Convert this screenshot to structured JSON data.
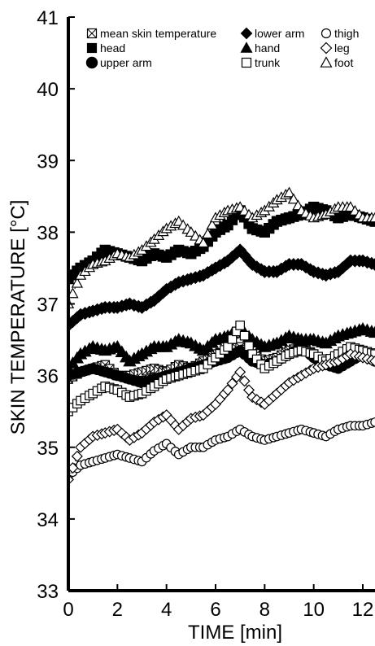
{
  "chart_data": {
    "type": "scatter",
    "title": "",
    "xlabel": "TIME [min]",
    "ylabel": "SKIN TEMPERATURE [°C]",
    "xlim": [
      0,
      12.8
    ],
    "ylim": [
      33,
      41
    ],
    "xticks": [
      0,
      2,
      4,
      6,
      8,
      10,
      12
    ],
    "yticks": [
      33,
      34,
      35,
      36,
      37,
      38,
      39,
      40,
      41
    ],
    "grid": false,
    "legend_placement": "top",
    "series": [
      {
        "name": "mean skin temperature",
        "marker": "square-cross",
        "filled": false,
        "dotted": false,
        "x": [
          0,
          0.5,
          1,
          1.5,
          2,
          2.5,
          3,
          3.5,
          4,
          4.5,
          5,
          5.5,
          6,
          6.5,
          7,
          7.5,
          8,
          8.5,
          9,
          9.5,
          10,
          10.5,
          11,
          11.5,
          12,
          12.5
        ],
        "values": [
          35.95,
          36.05,
          36.1,
          36.15,
          36.0,
          36.0,
          36.05,
          36.1,
          36.05,
          36.15,
          36.1,
          36.2,
          36.3,
          36.35,
          36.4,
          36.3,
          36.2,
          36.25,
          36.35,
          36.4,
          36.3,
          36.2,
          36.15,
          36.25,
          36.3,
          36.25
        ]
      },
      {
        "name": "head",
        "marker": "square",
        "filled": true,
        "dotted": false,
        "x": [
          0,
          0.5,
          1,
          1.5,
          2,
          2.5,
          3,
          3.5,
          4,
          4.5,
          5,
          5.5,
          6,
          6.5,
          7,
          7.5,
          8,
          8.5,
          9,
          9.5,
          10,
          10.5,
          11,
          11.5,
          12,
          12.5
        ],
        "values": [
          37.35,
          37.5,
          37.6,
          37.75,
          37.7,
          37.65,
          37.6,
          37.7,
          37.65,
          37.75,
          37.7,
          37.8,
          38.0,
          38.1,
          38.3,
          38.05,
          38.0,
          38.15,
          38.2,
          38.25,
          38.35,
          38.3,
          38.2,
          38.25,
          38.2,
          38.15
        ]
      },
      {
        "name": "upper arm",
        "marker": "circle",
        "filled": true,
        "dotted": false,
        "x": [
          0,
          0.5,
          1,
          1.5,
          2,
          2.5,
          3,
          3.5,
          4,
          4.5,
          5,
          5.5,
          6,
          6.5,
          7,
          7.5,
          8,
          8.5,
          9,
          9.5,
          10,
          10.5,
          11,
          11.5,
          12,
          12.5
        ],
        "values": [
          36.0,
          36.05,
          36.1,
          36.05,
          36.0,
          35.95,
          35.9,
          35.95,
          36.0,
          36.05,
          36.1,
          36.15,
          36.2,
          36.25,
          36.35,
          36.2,
          36.15,
          36.2,
          36.3,
          36.4,
          36.25,
          36.15,
          36.1,
          36.2,
          36.3,
          36.2
        ]
      },
      {
        "name": "lower arm",
        "marker": "diamond",
        "filled": true,
        "dotted": false,
        "x": [
          0,
          0.5,
          1,
          1.5,
          2,
          2.5,
          3,
          3.5,
          4,
          4.5,
          5,
          5.5,
          6,
          6.5,
          7,
          7.5,
          8,
          8.5,
          9,
          9.5,
          10,
          10.5,
          11,
          11.5,
          12,
          12.5
        ],
        "values": [
          36.7,
          36.85,
          36.9,
          36.95,
          36.95,
          37.0,
          36.95,
          37.05,
          37.2,
          37.3,
          37.35,
          37.4,
          37.5,
          37.6,
          37.75,
          37.55,
          37.45,
          37.45,
          37.55,
          37.55,
          37.45,
          37.4,
          37.45,
          37.6,
          37.6,
          37.55
        ]
      },
      {
        "name": "hand",
        "marker": "triangle",
        "filled": true,
        "dotted": false,
        "x": [
          0,
          0.5,
          1,
          1.5,
          2,
          2.5,
          3,
          3.5,
          4,
          4.5,
          5,
          5.5,
          6,
          6.5,
          7,
          7.5,
          8,
          8.5,
          9,
          9.5,
          10,
          10.5,
          11,
          11.5,
          12,
          12.5
        ],
        "values": [
          36.1,
          36.3,
          36.4,
          36.35,
          36.4,
          36.2,
          36.3,
          36.4,
          36.4,
          36.5,
          36.45,
          36.35,
          36.5,
          36.55,
          36.65,
          36.5,
          36.4,
          36.45,
          36.55,
          36.5,
          36.5,
          36.45,
          36.55,
          36.6,
          36.65,
          36.6
        ]
      },
      {
        "name": "trunk",
        "marker": "square",
        "filled": false,
        "dotted": false,
        "x": [
          0,
          0.5,
          1,
          1.5,
          2,
          2.5,
          3,
          3.5,
          4,
          4.5,
          5,
          5.5,
          6,
          6.5,
          7,
          7.5,
          8,
          8.5,
          9,
          9.5,
          10,
          10.5,
          11,
          11.5,
          12,
          12.5
        ],
        "values": [
          35.5,
          35.65,
          35.75,
          35.85,
          35.8,
          35.7,
          35.75,
          35.85,
          35.95,
          36.0,
          36.05,
          36.1,
          36.25,
          36.4,
          36.7,
          36.3,
          36.1,
          36.2,
          36.3,
          36.35,
          36.3,
          36.2,
          36.3,
          36.4,
          36.35,
          36.3
        ]
      },
      {
        "name": "thigh",
        "marker": "circle",
        "filled": false,
        "dotted": false,
        "x": [
          0,
          0.5,
          1,
          1.5,
          2,
          2.5,
          3,
          3.5,
          4,
          4.5,
          5,
          5.5,
          6,
          6.5,
          7,
          7.5,
          8,
          8.5,
          9,
          9.5,
          10,
          10.5,
          11,
          11.5,
          12,
          12.5
        ],
        "values": [
          34.6,
          34.75,
          34.8,
          34.85,
          34.9,
          34.85,
          34.8,
          34.95,
          35.05,
          34.9,
          35.0,
          35.0,
          35.1,
          35.15,
          35.25,
          35.15,
          35.1,
          35.15,
          35.2,
          35.25,
          35.2,
          35.15,
          35.25,
          35.3,
          35.3,
          35.35
        ]
      },
      {
        "name": "leg",
        "marker": "diamond",
        "filled": false,
        "dotted": true,
        "x": [
          0,
          0.5,
          1,
          1.5,
          2,
          2.5,
          3,
          3.5,
          4,
          4.5,
          5,
          5.5,
          6,
          6.5,
          7,
          7.5,
          8,
          8.5,
          9,
          9.5,
          10,
          10.5,
          11,
          11.5,
          12,
          12.5
        ],
        "values": [
          34.55,
          35.0,
          35.15,
          35.2,
          35.25,
          35.1,
          35.2,
          35.35,
          35.45,
          35.25,
          35.4,
          35.45,
          35.6,
          35.8,
          36.05,
          35.7,
          35.6,
          35.75,
          35.9,
          36.0,
          36.1,
          36.15,
          36.2,
          36.3,
          36.25,
          36.2
        ]
      },
      {
        "name": "foot",
        "marker": "triangle",
        "filled": false,
        "dotted": true,
        "x": [
          0,
          0.5,
          1,
          1.5,
          2,
          2.5,
          3,
          3.5,
          4,
          4.5,
          5,
          5.5,
          6,
          6.5,
          7,
          7.5,
          8,
          8.5,
          9,
          9.5,
          10,
          10.5,
          11,
          11.5,
          12,
          12.5
        ],
        "values": [
          37.0,
          37.4,
          37.55,
          37.6,
          37.7,
          37.65,
          37.75,
          37.9,
          38.05,
          38.15,
          38.0,
          37.85,
          38.2,
          38.3,
          38.35,
          38.2,
          38.3,
          38.45,
          38.55,
          38.3,
          38.2,
          38.25,
          38.35,
          38.35,
          38.2,
          38.2
        ]
      }
    ]
  }
}
